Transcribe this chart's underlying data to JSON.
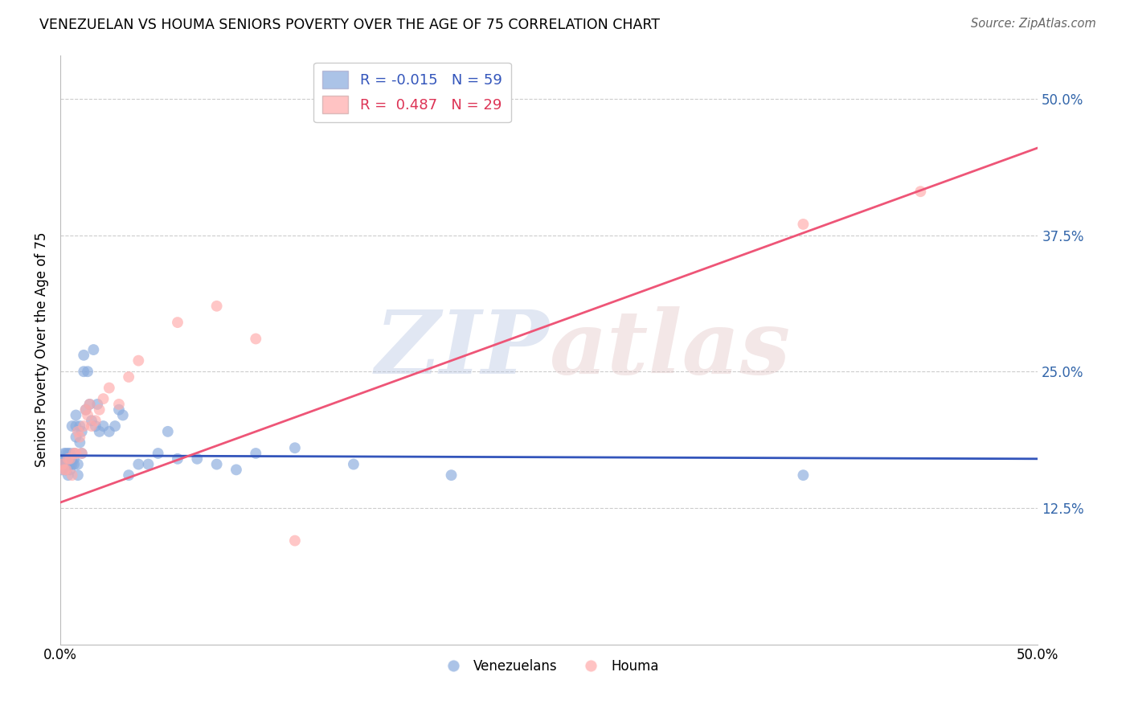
{
  "title": "VENEZUELAN VS HOUMA SENIORS POVERTY OVER THE AGE OF 75 CORRELATION CHART",
  "source": "Source: ZipAtlas.com",
  "ylabel": "Seniors Poverty Over the Age of 75",
  "legend_venezuelans": "Venezuelans",
  "legend_houma": "Houma",
  "blue_color": "#88AADD",
  "pink_color": "#FFAAAA",
  "blue_line_color": "#3355BB",
  "pink_line_color": "#EE5577",
  "blue_R": -0.015,
  "pink_R": 0.487,
  "blue_N": 59,
  "pink_N": 29,
  "venezuelans_x": [
    0.001,
    0.001,
    0.002,
    0.002,
    0.002,
    0.003,
    0.003,
    0.003,
    0.003,
    0.004,
    0.004,
    0.004,
    0.005,
    0.005,
    0.005,
    0.005,
    0.006,
    0.006,
    0.007,
    0.007,
    0.007,
    0.008,
    0.008,
    0.008,
    0.009,
    0.009,
    0.01,
    0.01,
    0.011,
    0.011,
    0.012,
    0.012,
    0.013,
    0.014,
    0.015,
    0.016,
    0.017,
    0.018,
    0.019,
    0.02,
    0.022,
    0.025,
    0.028,
    0.03,
    0.032,
    0.035,
    0.04,
    0.045,
    0.05,
    0.055,
    0.06,
    0.07,
    0.08,
    0.09,
    0.1,
    0.12,
    0.15,
    0.2,
    0.38
  ],
  "venezuelans_y": [
    0.165,
    0.16,
    0.165,
    0.17,
    0.175,
    0.16,
    0.165,
    0.17,
    0.175,
    0.155,
    0.165,
    0.175,
    0.16,
    0.165,
    0.17,
    0.175,
    0.165,
    0.2,
    0.165,
    0.17,
    0.175,
    0.19,
    0.2,
    0.21,
    0.155,
    0.165,
    0.185,
    0.2,
    0.175,
    0.195,
    0.25,
    0.265,
    0.215,
    0.25,
    0.22,
    0.205,
    0.27,
    0.2,
    0.22,
    0.195,
    0.2,
    0.195,
    0.2,
    0.215,
    0.21,
    0.155,
    0.165,
    0.165,
    0.175,
    0.195,
    0.17,
    0.17,
    0.165,
    0.16,
    0.175,
    0.18,
    0.165,
    0.155,
    0.155
  ],
  "houma_x": [
    0.001,
    0.002,
    0.003,
    0.004,
    0.005,
    0.006,
    0.007,
    0.008,
    0.009,
    0.01,
    0.011,
    0.012,
    0.013,
    0.014,
    0.015,
    0.016,
    0.018,
    0.02,
    0.022,
    0.025,
    0.03,
    0.035,
    0.04,
    0.06,
    0.08,
    0.1,
    0.12,
    0.38,
    0.44
  ],
  "houma_y": [
    0.165,
    0.16,
    0.16,
    0.17,
    0.17,
    0.155,
    0.175,
    0.175,
    0.195,
    0.19,
    0.175,
    0.2,
    0.215,
    0.21,
    0.22,
    0.2,
    0.205,
    0.215,
    0.225,
    0.235,
    0.22,
    0.245,
    0.26,
    0.295,
    0.31,
    0.28,
    0.095,
    0.385,
    0.415
  ],
  "blue_line": {
    "x0": 0.0,
    "y0": 0.173,
    "x1": 0.5,
    "y1": 0.17
  },
  "pink_line": {
    "x0": 0.0,
    "y0": 0.13,
    "x1": 0.5,
    "y1": 0.455
  },
  "xlim": [
    0.0,
    0.5
  ],
  "ylim": [
    0.0,
    0.54
  ],
  "yticks": [
    0.125,
    0.25,
    0.375,
    0.5
  ],
  "ytick_labels": [
    "12.5%",
    "25.0%",
    "37.5%",
    "50.0%"
  ],
  "xtick_labels": [
    "0.0%",
    "50.0%"
  ],
  "figsize": [
    14.06,
    8.92
  ],
  "dpi": 100
}
